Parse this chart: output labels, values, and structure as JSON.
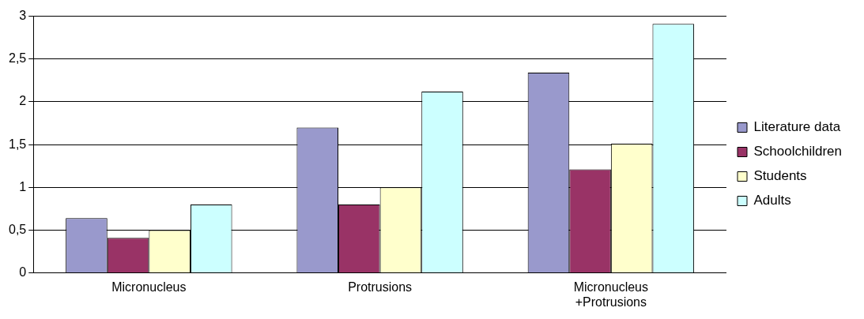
{
  "chart_data": {
    "type": "bar",
    "categories": [
      "Micronucleus",
      "Protrusions",
      "Micronucleus +Protrusions"
    ],
    "series": [
      {
        "name": "Literature data",
        "color": "#9999cc",
        "values": [
          0.64,
          1.7,
          2.34
        ]
      },
      {
        "name": "Schoolchildren",
        "color": "#993366",
        "values": [
          0.41,
          0.8,
          1.21
        ]
      },
      {
        "name": "Students",
        "color": "#ffffcc",
        "values": [
          0.5,
          1.0,
          1.51
        ]
      },
      {
        "name": "Adults",
        "color": "#ccffff",
        "values": [
          0.8,
          2.12,
          2.91
        ]
      }
    ],
    "ylim": [
      0,
      3
    ],
    "yticks": [
      0,
      {
        "value": 0.5,
        "label": "0,5"
      },
      1,
      {
        "value": 1.5,
        "label": "1,5"
      },
      2,
      {
        "value": 2.5,
        "label": "2,5"
      },
      3
    ],
    "grid": "y",
    "legend": "right"
  }
}
